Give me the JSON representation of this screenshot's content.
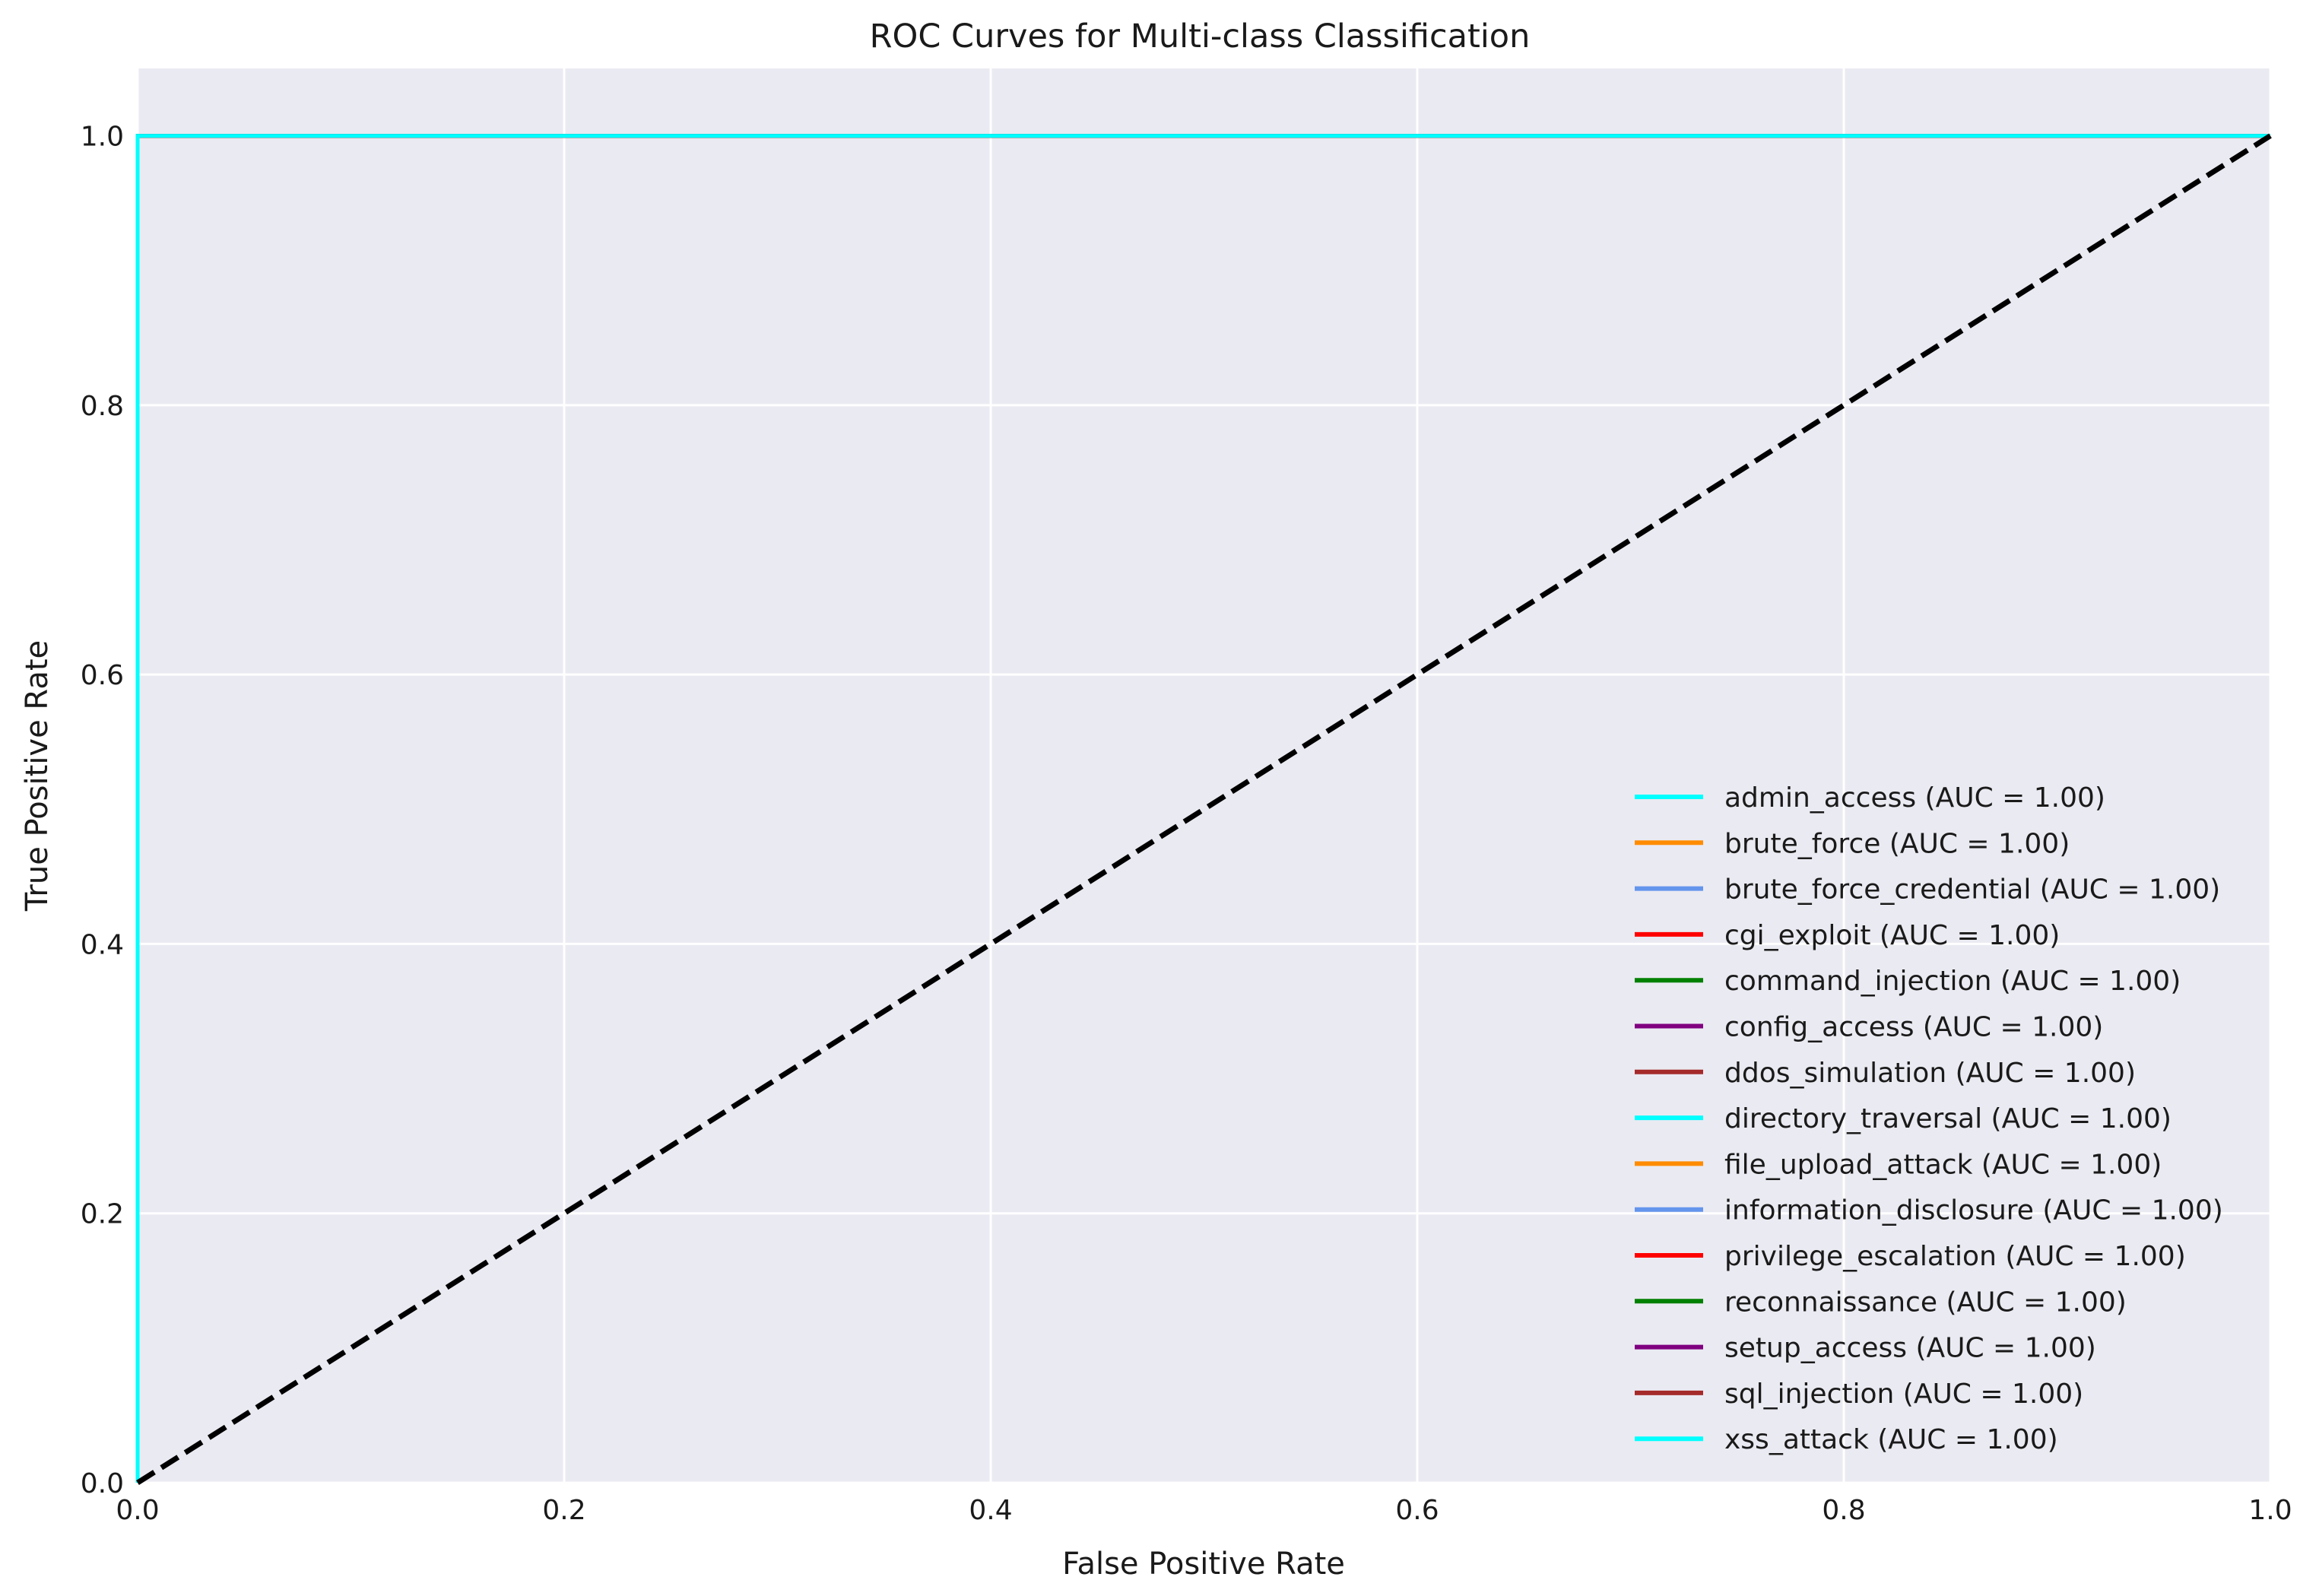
{
  "chart_data": {
    "type": "line",
    "title": "ROC Curves for Multi-class Classification",
    "xlabel": "False Positive Rate",
    "ylabel": "True Positive Rate",
    "xlim": [
      0.0,
      1.0
    ],
    "ylim": [
      0.0,
      1.05
    ],
    "xticks": [
      0.0,
      0.2,
      0.4,
      0.6,
      0.8,
      1.0
    ],
    "yticks": [
      0.0,
      0.2,
      0.4,
      0.6,
      0.8,
      1.0
    ],
    "xtick_labels": [
      "0.0",
      "0.2",
      "0.4",
      "0.6",
      "0.8",
      "1.0"
    ],
    "ytick_labels": [
      "0.0",
      "0.2",
      "0.4",
      "0.6",
      "0.8",
      "1.0"
    ],
    "grid": true,
    "background_color": "#EAEAF2",
    "legend_position": "lower right",
    "series": [
      {
        "name": "admin_access (AUC = 1.00)",
        "color": "#00FFFF",
        "x": [
          0,
          0,
          1
        ],
        "y": [
          0,
          1,
          1
        ]
      },
      {
        "name": "brute_force (AUC = 1.00)",
        "color": "#FF8C00",
        "x": [
          0,
          0,
          1
        ],
        "y": [
          0,
          1,
          1
        ]
      },
      {
        "name": "brute_force_credential (AUC = 1.00)",
        "color": "#6495ED",
        "x": [
          0,
          0,
          1
        ],
        "y": [
          0,
          1,
          1
        ]
      },
      {
        "name": "cgi_exploit (AUC = 1.00)",
        "color": "#FF0000",
        "x": [
          0,
          0,
          1
        ],
        "y": [
          0,
          1,
          1
        ]
      },
      {
        "name": "command_injection (AUC = 1.00)",
        "color": "#008000",
        "x": [
          0,
          0,
          1
        ],
        "y": [
          0,
          1,
          1
        ]
      },
      {
        "name": "config_access (AUC = 1.00)",
        "color": "#800080",
        "x": [
          0,
          0,
          1
        ],
        "y": [
          0,
          1,
          1
        ]
      },
      {
        "name": "ddos_simulation (AUC = 1.00)",
        "color": "#A52A2A",
        "x": [
          0,
          0,
          1
        ],
        "y": [
          0,
          1,
          1
        ]
      },
      {
        "name": "directory_traversal (AUC = 1.00)",
        "color": "#00FFFF",
        "x": [
          0,
          0,
          1
        ],
        "y": [
          0,
          1,
          1
        ]
      },
      {
        "name": "file_upload_attack (AUC = 1.00)",
        "color": "#FF8C00",
        "x": [
          0,
          0,
          1
        ],
        "y": [
          0,
          1,
          1
        ]
      },
      {
        "name": "information_disclosure (AUC = 1.00)",
        "color": "#6495ED",
        "x": [
          0,
          0,
          1
        ],
        "y": [
          0,
          1,
          1
        ]
      },
      {
        "name": "privilege_escalation (AUC = 1.00)",
        "color": "#FF0000",
        "x": [
          0,
          0,
          1
        ],
        "y": [
          0,
          1,
          1
        ]
      },
      {
        "name": "reconnaissance (AUC = 1.00)",
        "color": "#008000",
        "x": [
          0,
          0,
          1
        ],
        "y": [
          0,
          1,
          1
        ]
      },
      {
        "name": "setup_access (AUC = 1.00)",
        "color": "#800080",
        "x": [
          0,
          0,
          1
        ],
        "y": [
          0,
          1,
          1
        ]
      },
      {
        "name": "sql_injection (AUC = 1.00)",
        "color": "#A52A2A",
        "x": [
          0,
          0,
          1
        ],
        "y": [
          0,
          1,
          1
        ]
      },
      {
        "name": "xss_attack (AUC = 1.00)",
        "color": "#00FFFF",
        "x": [
          0,
          0,
          1
        ],
        "y": [
          0,
          1,
          1
        ]
      }
    ],
    "reference_line": {
      "color": "#000000",
      "style": "dashed",
      "x": [
        0,
        1
      ],
      "y": [
        0,
        1
      ]
    }
  }
}
